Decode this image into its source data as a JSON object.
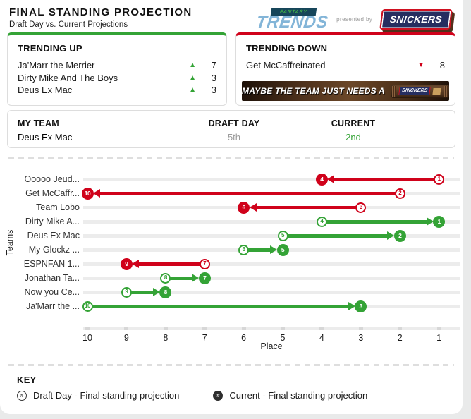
{
  "colors": {
    "up": "#34a336",
    "down": "#d0021b"
  },
  "icons": {
    "up_arrow": "▲",
    "down_arrow": "▼",
    "hash": "#"
  },
  "header": {
    "title": "FINAL STANDING PROJECTION",
    "subtitle": "Draft Day vs. Current Projections",
    "brand": {
      "fantasy": "FANTASY",
      "trends": "TRENDS",
      "presented_by": "presented by",
      "sponsor": "SNICKERS"
    }
  },
  "trending_up": {
    "title": "TRENDING UP",
    "items": [
      {
        "name": "Ja'Marr the Merrier",
        "change": 7
      },
      {
        "name": "Dirty Mike And The Boys",
        "change": 3
      },
      {
        "name": "Deus Ex Mac",
        "change": 3
      }
    ]
  },
  "trending_down": {
    "title": "TRENDING DOWN",
    "items": [
      {
        "name": "Get McCaffreinated",
        "change": 8
      }
    ],
    "ad": {
      "text": "MAYBE THE TEAM JUST NEEDS A",
      "sponsor": "SNICKERS"
    }
  },
  "my_team": {
    "label": "MY TEAM",
    "name": "Deus Ex Mac",
    "draft_day_label": "DRAFT DAY",
    "draft_day_value": "5th",
    "current_label": "CURRENT",
    "current_value": "2nd"
  },
  "chart_data": {
    "type": "dumbbell-arrow",
    "title": "Final standing projection: Draft Day vs. Current",
    "xlabel": "Place",
    "ylabel": "Teams",
    "x_ticks": [
      10,
      9,
      8,
      7,
      6,
      5,
      4,
      3,
      2,
      1
    ],
    "x_axis_reversed": true,
    "teams": [
      {
        "label": "Ooooo Jeud...",
        "draft_day": 1,
        "current": 4,
        "trend": "down"
      },
      {
        "label": "Get McCaffr...",
        "draft_day": 2,
        "current": 10,
        "trend": "down"
      },
      {
        "label": "Team Lobo",
        "draft_day": 3,
        "current": 6,
        "trend": "down"
      },
      {
        "label": "Dirty Mike A...",
        "draft_day": 4,
        "current": 1,
        "trend": "up"
      },
      {
        "label": "Deus Ex Mac",
        "draft_day": 5,
        "current": 2,
        "trend": "up"
      },
      {
        "label": "My Glockz ...",
        "draft_day": 6,
        "current": 5,
        "trend": "up"
      },
      {
        "label": "ESPNFAN 1...",
        "draft_day": 7,
        "current": 9,
        "trend": "down"
      },
      {
        "label": "Jonathan Ta...",
        "draft_day": 8,
        "current": 7,
        "trend": "up"
      },
      {
        "label": "Now you Ce...",
        "draft_day": 9,
        "current": 8,
        "trend": "up"
      },
      {
        "label": "Ja'Marr the ...",
        "draft_day": 10,
        "current": 3,
        "trend": "up"
      }
    ]
  },
  "key": {
    "title": "KEY",
    "items": [
      {
        "marker": "outlined-circle",
        "label": "Draft Day - Final standing projection"
      },
      {
        "marker": "filled-circle",
        "label": "Current - Final standing projection"
      }
    ]
  }
}
